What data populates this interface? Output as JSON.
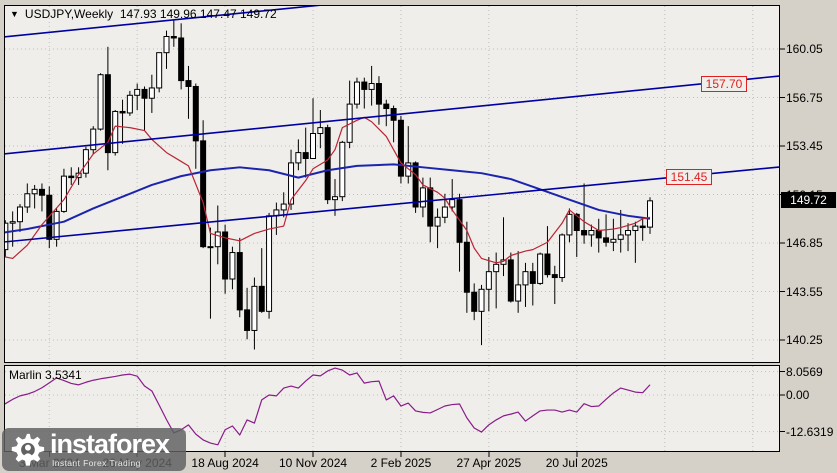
{
  "header": {
    "symbol_period": "USDJPY,Weekly",
    "quote": "147.93 149.96 147.47 149.72"
  },
  "indicator_label": "Marlin 3.5341",
  "object_labels": {
    "resistance": "157.70",
    "support": "151.45",
    "current_price": "149.72"
  },
  "watermark": {
    "brand": "instaforex",
    "tagline": "Instant Forex Trading"
  },
  "colors": {
    "panel_bg": "#efeeea",
    "outer_bg": "#d5d1c8",
    "grid": "#bfbfbf",
    "trendline": "#0000a0",
    "ma_slow": "#1c24ad",
    "ma_fast": "#bb2433",
    "marlin": "#8a1b8a",
    "bull_body": "#ffffff",
    "bear_body": "#000000",
    "label_red": "#e02020"
  },
  "chart_data": {
    "type": "candlestick",
    "title": "USDJPY Weekly",
    "current_ohlc": {
      "open": 147.93,
      "high": 149.96,
      "low": 147.47,
      "close": 149.72
    },
    "price_axis_ticks": [
      "160.05",
      "156.75",
      "153.45",
      "150.15",
      "146.85",
      "143.55",
      "140.25"
    ],
    "indicator_axis_ticks": [
      "8.0569",
      "0.00",
      "-12.6319"
    ],
    "time_axis_ticks": [
      {
        "label": "3 Mar 2024",
        "i": 7
      },
      {
        "label": "26 May 2024",
        "i": 19
      },
      {
        "label": "18 Aug 2024",
        "i": 31
      },
      {
        "label": "10 Nov 2024",
        "i": 43
      },
      {
        "label": "2 Feb 2025",
        "i": 55
      },
      {
        "label": "27 Apr 2025",
        "i": 67
      },
      {
        "label": "20 Jul 2025",
        "i": 79
      }
    ],
    "ylim": [
      138.6,
      163.0
    ],
    "grid": "dotted",
    "candles_ohlc": [
      [
        148.7,
        149.3,
        146.0,
        146.4
      ],
      [
        146.4,
        148.4,
        145.9,
        148.2
      ],
      [
        148.2,
        149.0,
        146.6,
        148.3
      ],
      [
        148.3,
        149.5,
        147.6,
        149.3
      ],
      [
        149.3,
        150.9,
        148.9,
        150.2
      ],
      [
        150.2,
        150.8,
        149.2,
        150.5
      ],
      [
        150.5,
        150.9,
        149.0,
        150.1
      ],
      [
        150.1,
        150.7,
        146.5,
        147.1
      ],
      [
        147.1,
        149.2,
        146.6,
        149.0
      ],
      [
        149.0,
        151.9,
        148.9,
        151.4
      ],
      [
        151.4,
        152.0,
        150.8,
        151.3
      ],
      [
        151.3,
        152.0,
        150.8,
        151.6
      ],
      [
        151.6,
        153.4,
        151.3,
        153.2
      ],
      [
        153.2,
        154.8,
        152.9,
        154.6
      ],
      [
        154.6,
        158.4,
        154.5,
        158.3
      ],
      [
        158.3,
        160.2,
        151.8,
        153.0
      ],
      [
        153.0,
        155.9,
        152.8,
        155.8
      ],
      [
        155.8,
        156.6,
        153.6,
        155.7
      ],
      [
        155.7,
        157.2,
        155.5,
        156.9
      ],
      [
        156.9,
        157.7,
        155.9,
        157.3
      ],
      [
        157.3,
        157.5,
        154.5,
        156.7
      ],
      [
        156.7,
        158.3,
        155.7,
        157.4
      ],
      [
        157.4,
        159.8,
        157.1,
        159.8
      ],
      [
        159.8,
        161.3,
        158.7,
        160.9
      ],
      [
        160.9,
        162.0,
        160.2,
        160.8
      ],
      [
        160.8,
        161.8,
        157.3,
        157.9
      ],
      [
        157.9,
        158.9,
        155.3,
        157.5
      ],
      [
        157.5,
        157.7,
        151.9,
        153.8
      ],
      [
        153.8,
        155.2,
        146.5,
        146.6
      ],
      [
        146.6,
        147.9,
        141.7,
        146.6
      ],
      [
        146.6,
        149.4,
        145.4,
        147.6
      ],
      [
        147.6,
        148.1,
        143.4,
        144.4
      ],
      [
        144.4,
        146.6,
        143.7,
        146.2
      ],
      [
        146.2,
        147.2,
        141.8,
        142.3
      ],
      [
        142.3,
        143.8,
        140.3,
        140.9
      ],
      [
        140.9,
        144.5,
        139.6,
        143.9
      ],
      [
        143.9,
        146.5,
        142.1,
        142.2
      ],
      [
        142.2,
        148.9,
        141.7,
        148.7
      ],
      [
        148.7,
        149.6,
        147.4,
        149.1
      ],
      [
        149.1,
        150.3,
        148.6,
        149.5
      ],
      [
        149.5,
        153.2,
        149.1,
        152.3
      ],
      [
        152.3,
        153.9,
        151.8,
        153.0
      ],
      [
        153.0,
        154.7,
        151.3,
        152.6
      ],
      [
        152.6,
        156.7,
        152.6,
        154.3
      ],
      [
        154.3,
        155.9,
        153.3,
        154.7
      ],
      [
        154.7,
        154.9,
        149.5,
        149.8
      ],
      [
        149.8,
        151.2,
        148.7,
        150.0
      ],
      [
        150.0,
        153.8,
        149.7,
        153.7
      ],
      [
        153.7,
        157.9,
        153.3,
        156.3
      ],
      [
        156.3,
        158.1,
        156.0,
        157.8
      ],
      [
        157.8,
        158.1,
        156.0,
        157.3
      ],
      [
        157.3,
        158.9,
        156.2,
        157.7
      ],
      [
        157.7,
        158.2,
        154.9,
        156.3
      ],
      [
        156.3,
        156.6,
        154.8,
        156.0
      ],
      [
        156.0,
        156.2,
        153.7,
        155.2
      ],
      [
        155.2,
        155.5,
        150.9,
        151.4
      ],
      [
        151.4,
        154.8,
        150.9,
        152.3
      ],
      [
        152.3,
        152.4,
        148.9,
        149.3
      ],
      [
        149.3,
        151.3,
        148.6,
        150.6
      ],
      [
        150.6,
        151.3,
        146.9,
        148.0
      ],
      [
        148.0,
        149.2,
        146.5,
        148.6
      ],
      [
        148.6,
        150.2,
        148.2,
        149.3
      ],
      [
        149.3,
        151.2,
        149.0,
        149.8
      ],
      [
        149.8,
        150.2,
        144.9,
        146.9
      ],
      [
        146.9,
        148.3,
        142.1,
        143.5
      ],
      [
        143.5,
        144.1,
        141.6,
        142.2
      ],
      [
        142.2,
        144.0,
        139.9,
        143.7
      ],
      [
        143.7,
        145.9,
        142.2,
        144.9
      ],
      [
        144.9,
        146.2,
        142.4,
        145.4
      ],
      [
        145.4,
        148.6,
        144.6,
        145.7
      ],
      [
        145.7,
        146.2,
        142.8,
        142.9
      ],
      [
        142.9,
        146.3,
        142.1,
        144.0
      ],
      [
        144.0,
        145.5,
        142.5,
        144.9
      ],
      [
        144.9,
        145.5,
        142.6,
        144.1
      ],
      [
        144.1,
        146.2,
        144.0,
        146.1
      ],
      [
        146.1,
        148.0,
        144.5,
        144.7
      ],
      [
        144.7,
        145.3,
        142.7,
        144.5
      ],
      [
        144.5,
        147.5,
        144.2,
        147.4
      ],
      [
        147.4,
        149.2,
        146.9,
        148.8
      ],
      [
        148.8,
        148.9,
        145.9,
        147.7
      ],
      [
        147.7,
        150.9,
        146.8,
        147.4
      ],
      [
        147.4,
        148.1,
        146.6,
        147.7
      ],
      [
        147.7,
        148.5,
        146.2,
        147.2
      ],
      [
        147.2,
        148.8,
        146.6,
        146.9
      ],
      [
        146.9,
        148.5,
        146.3,
        147.1
      ],
      [
        147.1,
        149.1,
        146.2,
        147.4
      ],
      [
        147.4,
        148.2,
        146.3,
        147.7
      ],
      [
        147.7,
        148.3,
        145.5,
        148.0
      ],
      [
        148.0,
        148.6,
        147.0,
        147.9
      ],
      [
        147.93,
        149.96,
        147.47,
        149.72
      ]
    ],
    "ma_slow_points": [
      [
        0,
        147.5
      ],
      [
        4,
        147.8
      ],
      [
        9,
        148.3
      ],
      [
        13,
        149.2
      ],
      [
        17,
        150.0
      ],
      [
        21,
        150.8
      ],
      [
        25,
        151.4
      ],
      [
        29,
        151.8
      ],
      [
        33,
        152.0
      ],
      [
        37,
        151.8
      ],
      [
        41,
        151.3
      ],
      [
        45,
        151.8
      ],
      [
        49,
        152.1
      ],
      [
        54,
        152.2
      ],
      [
        58,
        152.0
      ],
      [
        62,
        151.8
      ],
      [
        66,
        151.6
      ],
      [
        70,
        151.2
      ],
      [
        74,
        150.5
      ],
      [
        78,
        149.8
      ],
      [
        82,
        149.1
      ],
      [
        86,
        148.7
      ],
      [
        89,
        148.5
      ]
    ],
    "ma_fast_points": [
      [
        0,
        146.0
      ],
      [
        2,
        145.8
      ],
      [
        4,
        146.7
      ],
      [
        6,
        148.1
      ],
      [
        9,
        149.8
      ],
      [
        11,
        151.5
      ],
      [
        13,
        152.9
      ],
      [
        15,
        153.7
      ],
      [
        16,
        154.8
      ],
      [
        18,
        154.7
      ],
      [
        20,
        154.5
      ],
      [
        21,
        153.9
      ],
      [
        23,
        153.0
      ],
      [
        25,
        152.4
      ],
      [
        26,
        152.1
      ],
      [
        28,
        149.6
      ],
      [
        29,
        147.5
      ],
      [
        31,
        147.2
      ],
      [
        33,
        147.0
      ],
      [
        35,
        147.5
      ],
      [
        37,
        147.8
      ],
      [
        39,
        148.0
      ],
      [
        40,
        149.8
      ],
      [
        42,
        151.1
      ],
      [
        43,
        151.9
      ],
      [
        45,
        152.5
      ],
      [
        46,
        153.2
      ],
      [
        47,
        154.7
      ],
      [
        49,
        155.2
      ],
      [
        50,
        155.4
      ],
      [
        51,
        155.1
      ],
      [
        53,
        154.1
      ],
      [
        54,
        153.2
      ],
      [
        55,
        152.3
      ],
      [
        57,
        151.5
      ],
      [
        58,
        150.8
      ],
      [
        60,
        150.3
      ],
      [
        61,
        149.9
      ],
      [
        62,
        149.1
      ],
      [
        64,
        147.7
      ],
      [
        65,
        146.5
      ],
      [
        66,
        145.8
      ],
      [
        68,
        145.5
      ],
      [
        69,
        145.6
      ],
      [
        70,
        146.0
      ],
      [
        72,
        146.3
      ],
      [
        73,
        146.4
      ],
      [
        75,
        146.9
      ],
      [
        77,
        148.2
      ],
      [
        78,
        149.1
      ],
      [
        80,
        148.3
      ],
      [
        82,
        147.7
      ],
      [
        84,
        147.8
      ],
      [
        85,
        147.9
      ],
      [
        87,
        148.2
      ],
      [
        88,
        148.5
      ],
      [
        89,
        148.6
      ]
    ],
    "trendlines": [
      {
        "name": "channel-upper",
        "price_left": 160.87,
        "price_right": 166.17
      },
      {
        "name": "channel-mid",
        "price_left": 152.91,
        "price_right": 158.21,
        "label": "157.70"
      },
      {
        "name": "channel-lower",
        "price_left": 146.92,
        "price_right": 152.02,
        "label": "151.45"
      }
    ],
    "indicator": {
      "name": "Marlin",
      "current_value": 3.5341,
      "values": [
        -4.5,
        -3.0,
        -1.5,
        -0.3,
        0.3,
        1.2,
        2.5,
        4.2,
        5.9,
        5.0,
        4.0,
        3.5,
        4.4,
        5.1,
        5.6,
        6.0,
        6.4,
        6.9,
        7.2,
        6.5,
        3.1,
        1.4,
        -3.5,
        -8.5,
        -13.1,
        -12.0,
        -10.3,
        -13.5,
        -15.5,
        -16.6,
        -17.2,
        -12.0,
        -10.7,
        -13.8,
        -8.6,
        -9.7,
        -1.7,
        0.0,
        -0.3,
        2.4,
        3.1,
        2.4,
        4.8,
        6.9,
        6.6,
        8.3,
        9.3,
        8.6,
        6.9,
        7.6,
        4.1,
        4.6,
        4.8,
        -1.7,
        -0.3,
        -3.8,
        -2.8,
        -5.5,
        -6.0,
        -6.2,
        -5.0,
        -3.8,
        -3.3,
        -3.1,
        -7.9,
        -11.4,
        -12.8,
        -10.3,
        -8.6,
        -7.2,
        -6.6,
        -5.9,
        -9.0,
        -7.2,
        -5.5,
        -5.2,
        -5.2,
        -5.9,
        -5.2,
        -5.9,
        -3.0,
        -4.0,
        -3.8,
        -1.5,
        0.7,
        2.4,
        1.7,
        1.0,
        0.8,
        3.5341
      ]
    }
  }
}
